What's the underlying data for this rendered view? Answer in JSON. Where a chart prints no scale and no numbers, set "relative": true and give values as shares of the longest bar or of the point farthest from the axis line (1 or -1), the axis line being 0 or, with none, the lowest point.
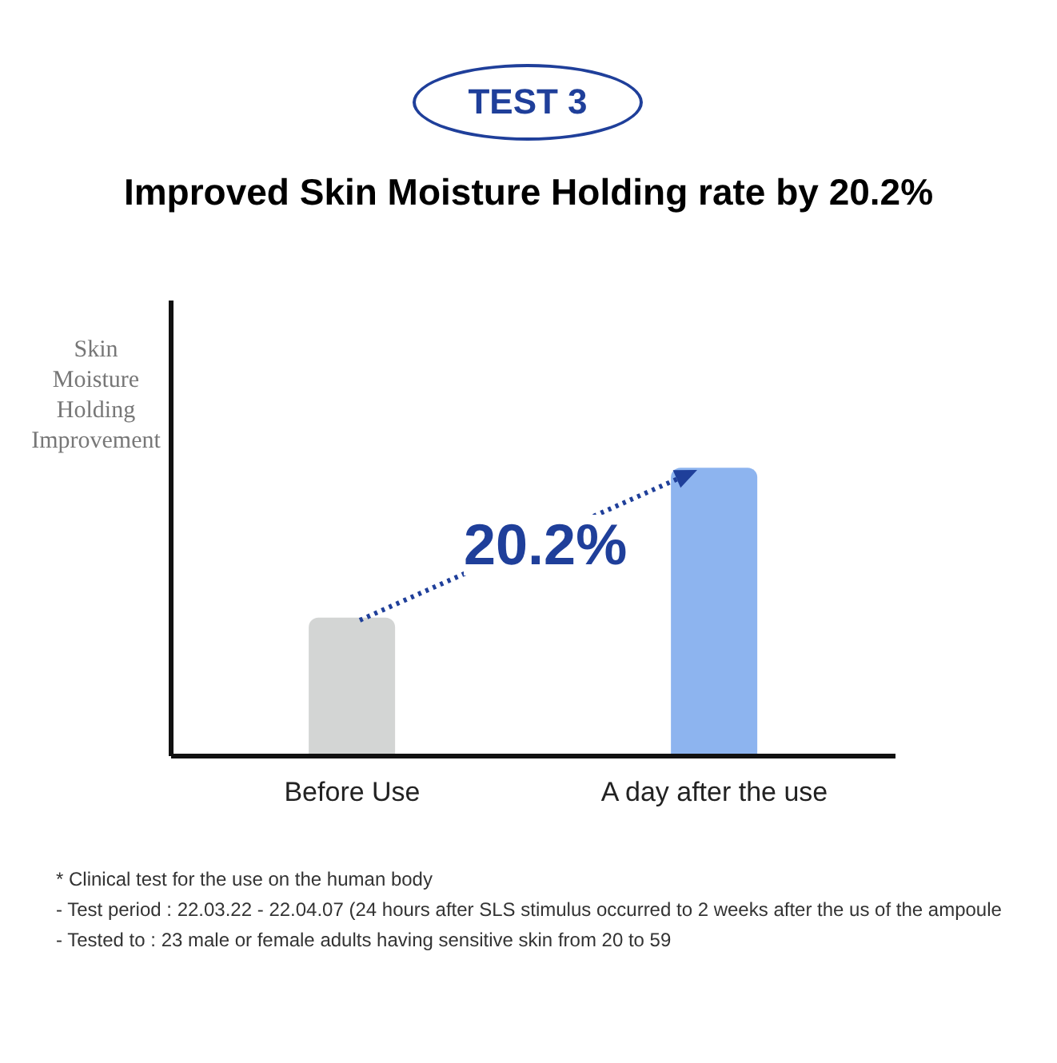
{
  "chart_data": {
    "type": "bar",
    "title": "Improved Skin Moisture Holding rate by 20.2%",
    "subtitle": "TEST 3",
    "ylabel": "Skin Moisture Holding Improvement",
    "categories": [
      "Before Use",
      "A day after the use"
    ],
    "values": [
      0.48,
      1
    ],
    "colors": [
      "#d3d5d4",
      "#8db4ef"
    ],
    "relative": true,
    "annotations": [
      "20.2%",
      "* Clinical test for the use on the human body",
      "- Test period : 22.03.22 - 22.04.07 (24 hours after SLS stimulus occurred to 2 weeks after the us of the ampoule",
      "- Tested to : 23 male or female adults having sensitive skin from 20 to 59"
    ]
  }
}
